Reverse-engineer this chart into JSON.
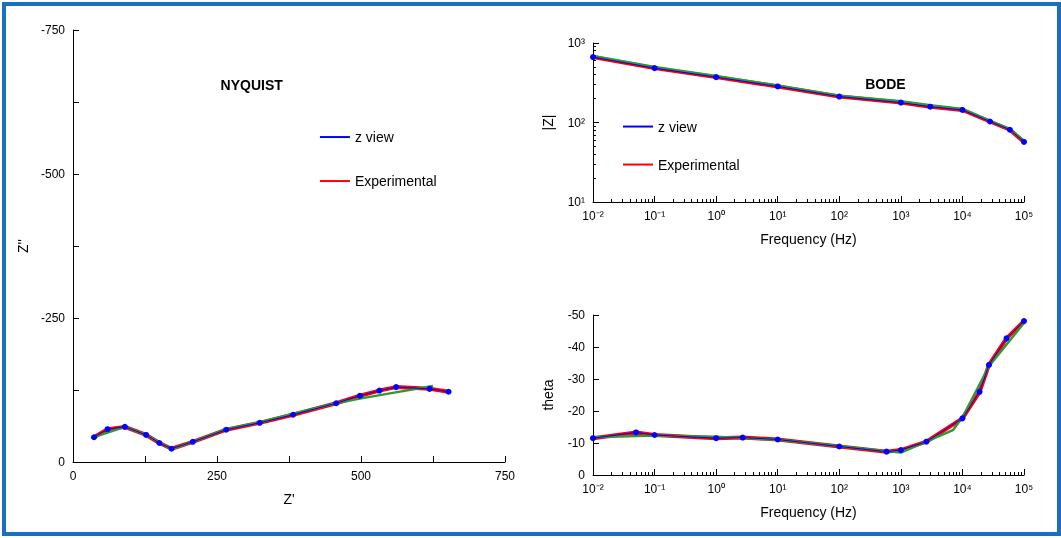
{
  "chart_data": [
    {
      "type": "line",
      "title": "NYQUIST",
      "xlabel": "Z'",
      "ylabel": "Z''",
      "xlim": [
        0,
        750
      ],
      "xticks": [
        0,
        {
          "value": 125,
          "label": null
        },
        250,
        {
          "value": 375,
          "label": null
        },
        500,
        {
          "value": 625,
          "label": null
        },
        750
      ],
      "ylim": [
        0,
        -750
      ],
      "yticks": [
        0,
        {
          "value": -125,
          "label": null
        },
        -250,
        {
          "value": -375,
          "label": null
        },
        -500,
        {
          "value": -625,
          "label": null
        },
        -750
      ],
      "legend": "right",
      "grid": false,
      "series": [
        {
          "name": "z view",
          "color": "#0000ff",
          "marker": "circle",
          "x": [
            36.5,
            60,
            90,
            127,
            150,
            171,
            208,
            266,
            324,
            382,
            457,
            498,
            532,
            561,
            619,
            652
          ],
          "values": [
            -43,
            -57,
            -61,
            -47,
            -33,
            -23,
            -35,
            -56,
            -68,
            -82,
            -102,
            -115,
            -124,
            -130,
            -127,
            -122
          ]
        },
        {
          "name": "Experimental",
          "color": "#ff0000",
          "marker": "none",
          "x": [
            36.5,
            60,
            90,
            127,
            150,
            171,
            208,
            266,
            324,
            382,
            457,
            498,
            532,
            561,
            619,
            652
          ],
          "values": [
            -43,
            -57,
            -61,
            -47,
            -33,
            -23,
            -35,
            -56,
            -68,
            -82,
            -102,
            -115,
            -124,
            -130,
            -127,
            -122
          ]
        },
        {
          "color": "#2e9a2e",
          "marker": "none",
          "x": [
            36.5,
            90,
            127,
            171,
            208,
            266,
            324,
            382,
            457,
            498,
            555,
            625
          ],
          "values": [
            -43,
            -61,
            -47,
            -22,
            -35,
            -57,
            -69,
            -84,
            -102,
            -110,
            -120,
            -132
          ]
        }
      ]
    },
    {
      "type": "line",
      "title": "BODE",
      "xlabel": "Frequency (Hz)",
      "ylabel": "|Z|",
      "log": "xy",
      "xlim": [
        0.01,
        100000
      ],
      "xticks": [
        {
          "value": 0.01,
          "label": "10⁻²"
        },
        {
          "value": 0.1,
          "label": "10⁻¹"
        },
        {
          "value": 1,
          "label": "10⁰"
        },
        {
          "value": 10,
          "label": "10¹"
        },
        {
          "value": 100,
          "label": "10²"
        },
        {
          "value": 1000,
          "label": "10³"
        },
        {
          "value": 10000,
          "label": "10⁴"
        },
        {
          "value": 100000,
          "label": "10⁵"
        }
      ],
      "ylim": [
        10,
        1000
      ],
      "yticks": [
        {
          "value": 10,
          "label": "10¹"
        },
        {
          "value": 100,
          "label": "10²"
        },
        {
          "value": 1000,
          "label": "10³"
        }
      ],
      "legend": "left",
      "grid": false,
      "series": [
        {
          "name": "z view",
          "color": "#0000ff",
          "marker": "circle",
          "x": [
            0.01,
            0.1,
            1,
            10,
            100,
            1000,
            3000,
            10000,
            28000,
            59000,
            100000
          ],
          "values": [
            665,
            483,
            372,
            284,
            212,
            178,
            158,
            144,
            103,
            81,
            57
          ]
        },
        {
          "name": "Experimental",
          "color": "#ff0000",
          "marker": "none",
          "x": [
            0.01,
            0.1,
            1,
            10,
            100,
            1000,
            3000,
            10000,
            28000,
            59000,
            100000
          ],
          "values": [
            665,
            483,
            372,
            284,
            212,
            178,
            158,
            144,
            103,
            81,
            57
          ]
        },
        {
          "color": "#2e9a2e",
          "marker": "none",
          "x": [
            0.01,
            0.1,
            1,
            10,
            100,
            1000,
            3000,
            10000,
            28000,
            59000,
            100000
          ],
          "values": [
            690,
            500,
            385,
            292,
            218,
            185,
            165,
            148,
            105,
            82,
            59
          ]
        }
      ]
    },
    {
      "type": "line",
      "xlabel": "Frequency (Hz)",
      "ylabel": "theta",
      "log": "x",
      "xlim": [
        0.01,
        100000
      ],
      "xticks": [
        {
          "value": 0.01,
          "label": "10⁻²"
        },
        {
          "value": 0.1,
          "label": "10⁻¹"
        },
        {
          "value": 1,
          "label": "10⁰"
        },
        {
          "value": 10,
          "label": "10¹"
        },
        {
          "value": 100,
          "label": "10²"
        },
        {
          "value": 1000,
          "label": "10³"
        },
        {
          "value": 10000,
          "label": "10⁴"
        },
        {
          "value": 100000,
          "label": "10⁵"
        }
      ],
      "ylim": [
        0,
        -50
      ],
      "yticks": [
        0,
        -10,
        -20,
        -30,
        -40,
        -50
      ],
      "legend": false,
      "grid": false,
      "series": [
        {
          "color": "#0000ff",
          "marker": "circle",
          "x": [
            0.01,
            0.05,
            0.1,
            1,
            2.7,
            10,
            100,
            585,
            1000,
            2600,
            10000,
            19000,
            27000,
            52000,
            100000
          ],
          "values": [
            -11.5,
            -13.3,
            -12.5,
            -11.5,
            -11.7,
            -11.1,
            -8.9,
            -7.3,
            -7.8,
            -10.4,
            -17.7,
            -26,
            -34.4,
            -42.7,
            -48.1
          ]
        },
        {
          "color": "#ff0000",
          "marker": "none",
          "x": [
            0.01,
            0.05,
            0.1,
            1,
            2.7,
            10,
            100,
            585,
            1000,
            2600,
            10000,
            19000,
            27000,
            52000,
            100000
          ],
          "values": [
            -11.5,
            -13.3,
            -12.5,
            -11.5,
            -11.7,
            -11.1,
            -8.9,
            -7.3,
            -7.8,
            -10.4,
            -17.7,
            -26,
            -34.4,
            -42.7,
            -48.1
          ]
        },
        {
          "color": "#2e9a2e",
          "marker": "none",
          "x": [
            0.01,
            0.1,
            1,
            10,
            100,
            1000,
            7000,
            10000,
            27000,
            100000
          ],
          "values": [
            -11.8,
            -12.3,
            -12,
            -11,
            -9,
            -7,
            -14,
            -18,
            -34,
            -47.5
          ]
        }
      ]
    }
  ]
}
